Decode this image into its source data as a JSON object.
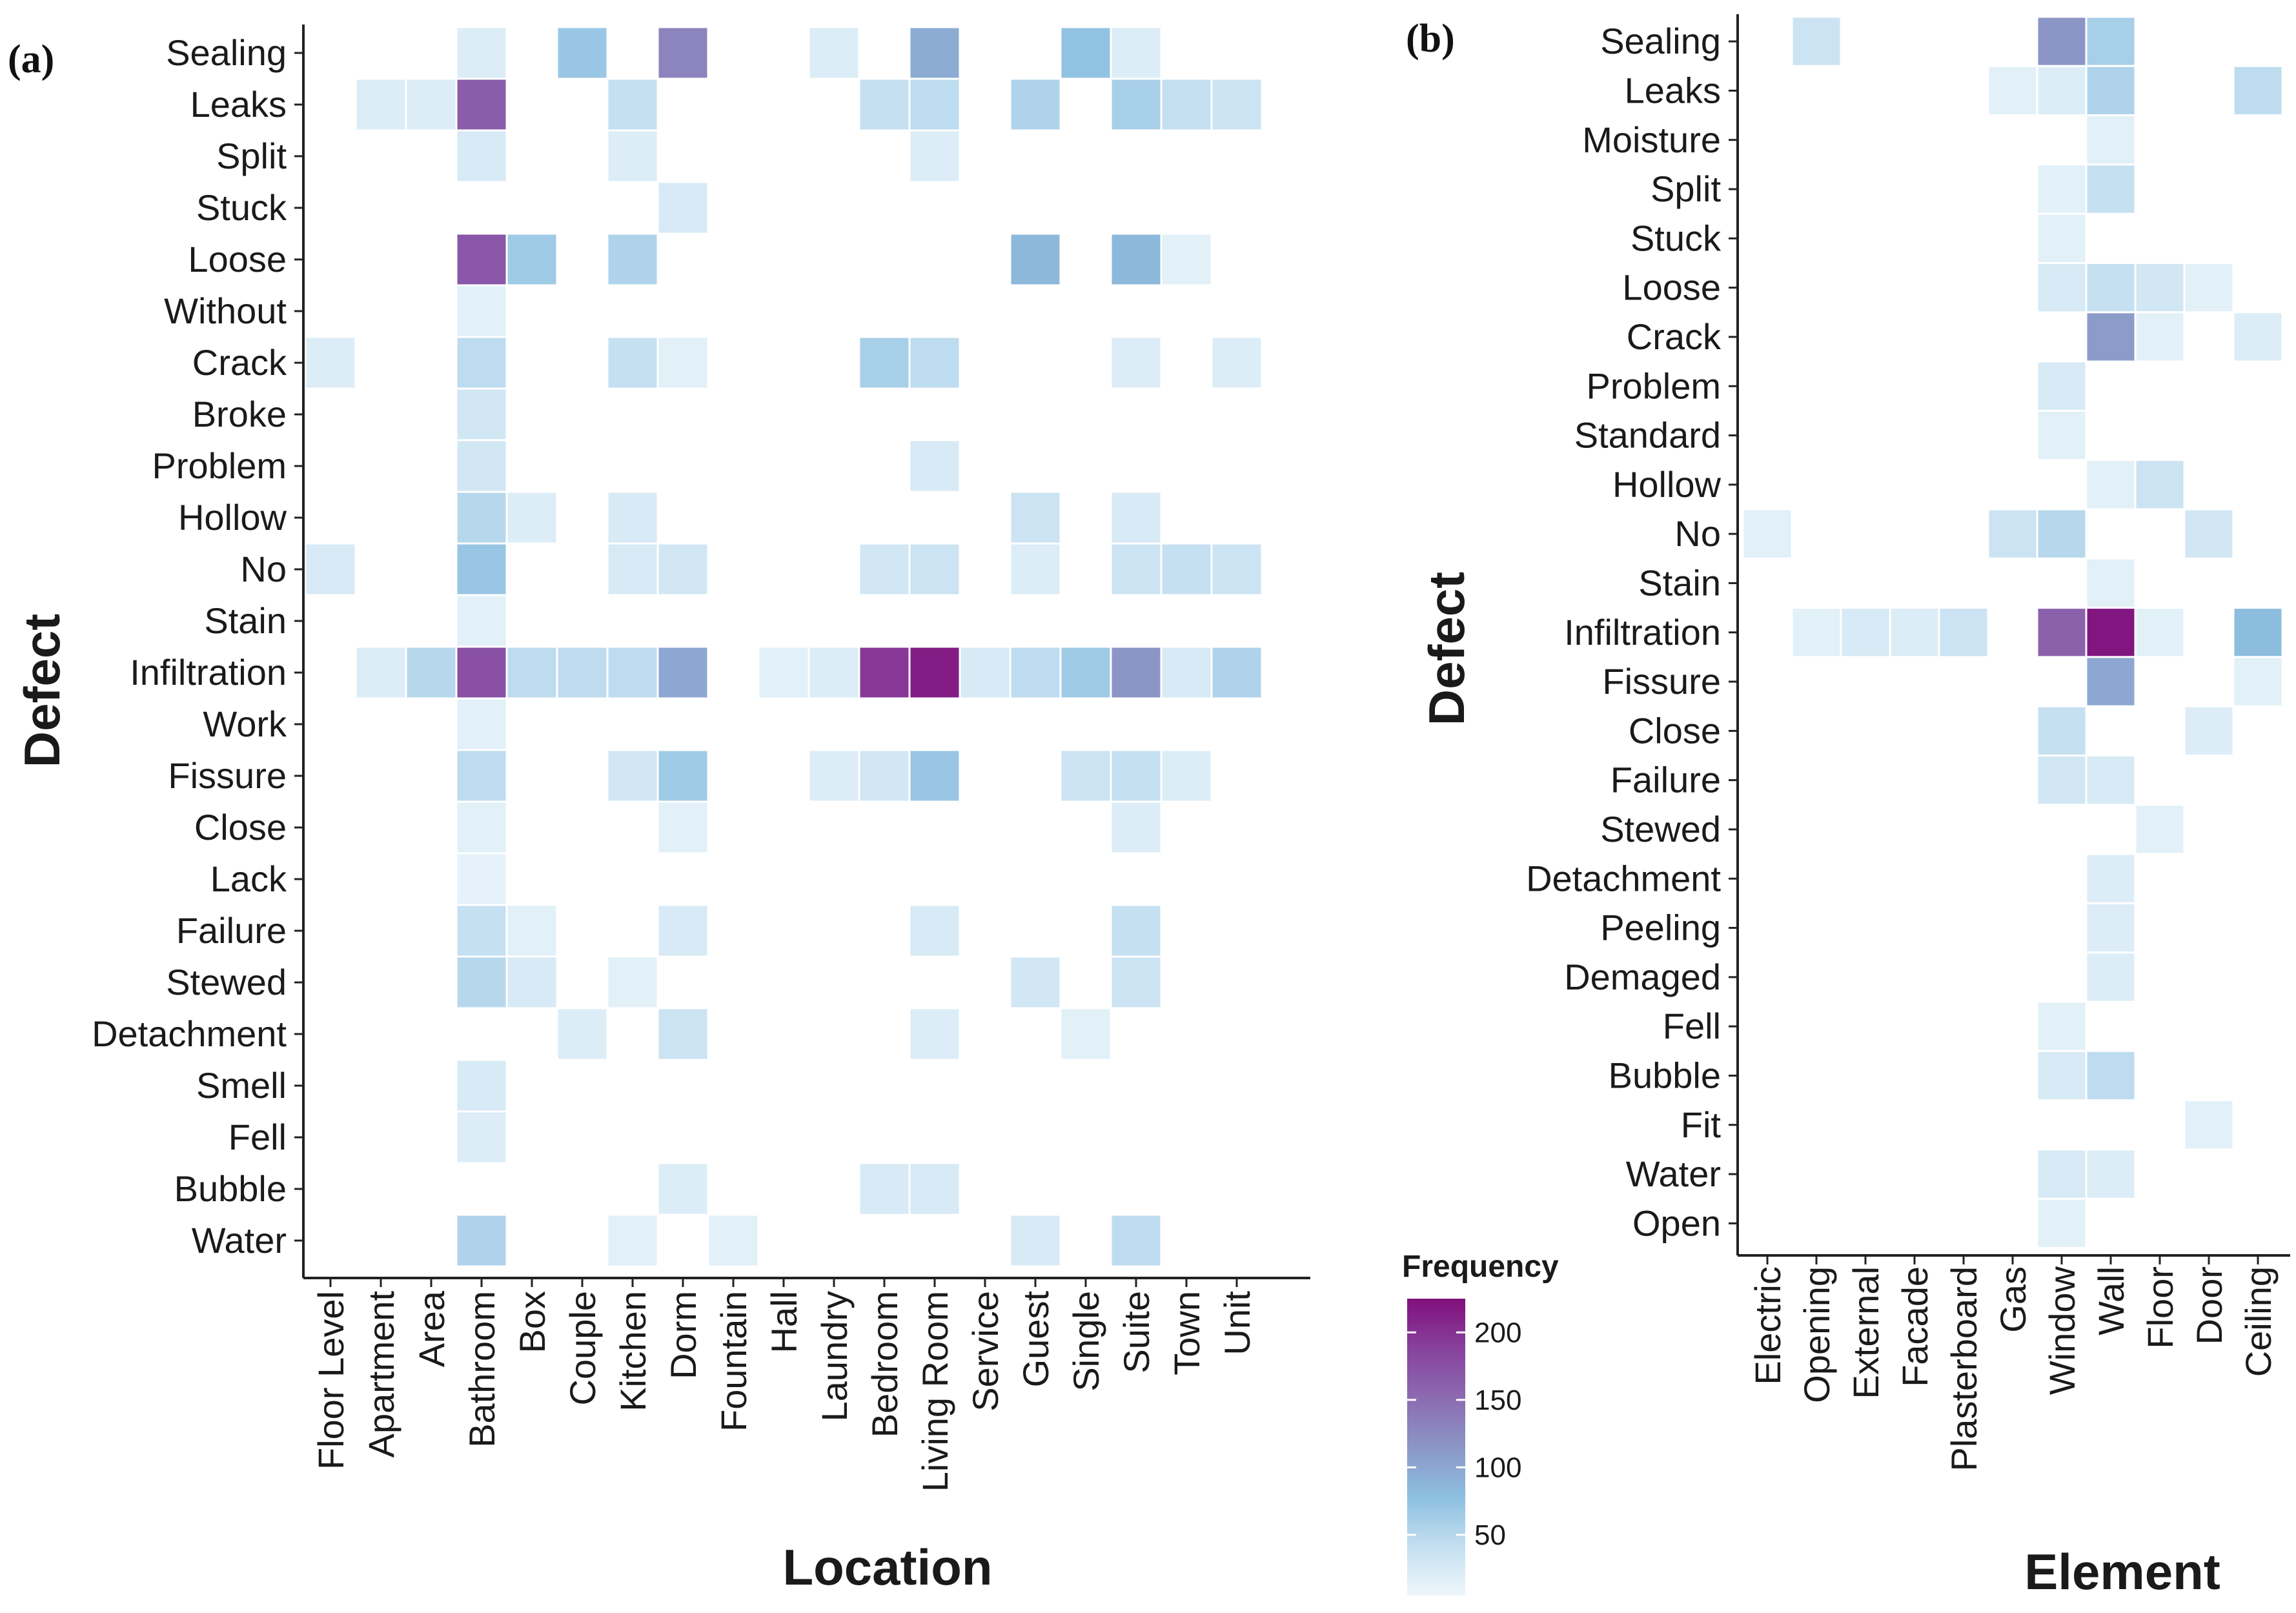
{
  "chart_data": [
    {
      "type": "heatmap",
      "panel_label": "(a)",
      "xlabel": "Location",
      "ylabel": "Defect",
      "x": [
        "Floor Level",
        "Apartment",
        "Area",
        "Bathroom",
        "Box",
        "Couple",
        "Kitchen",
        "Dorm",
        "Fountain",
        "Hall",
        "Laundry",
        "Bedroom",
        "Living Room",
        "Service",
        "Guest",
        "Single",
        "Suite",
        "Town",
        "Unit"
      ],
      "y": [
        "Sealing",
        "Leaks",
        "Split",
        "Stuck",
        "Loose",
        "Without",
        "Crack",
        "Broke",
        "Problem",
        "Hollow",
        "No",
        "Stain",
        "Infiltration",
        "Work",
        "Fissure",
        "Close",
        "Lack",
        "Failure",
        "Stewed",
        "Detachment",
        "Smell",
        "Fell",
        "Bubble",
        "Water"
      ],
      "cells": [
        {
          "y": "Sealing",
          "x": "Bathroom",
          "value": 20
        },
        {
          "y": "Sealing",
          "x": "Couple",
          "value": 70
        },
        {
          "y": "Sealing",
          "x": "Dorm",
          "value": 130
        },
        {
          "y": "Sealing",
          "x": "Laundry",
          "value": 20
        },
        {
          "y": "Sealing",
          "x": "Living Room",
          "value": 95
        },
        {
          "y": "Sealing",
          "x": "Single",
          "value": 75
        },
        {
          "y": "Sealing",
          "x": "Suite",
          "value": 20
        },
        {
          "y": "Leaks",
          "x": "Apartment",
          "value": 20
        },
        {
          "y": "Leaks",
          "x": "Area",
          "value": 20
        },
        {
          "y": "Leaks",
          "x": "Bathroom",
          "value": 165
        },
        {
          "y": "Leaks",
          "x": "Kitchen",
          "value": 40
        },
        {
          "y": "Leaks",
          "x": "Bedroom",
          "value": 40
        },
        {
          "y": "Leaks",
          "x": "Living Room",
          "value": 45
        },
        {
          "y": "Leaks",
          "x": "Guest",
          "value": 55
        },
        {
          "y": "Leaks",
          "x": "Suite",
          "value": 60
        },
        {
          "y": "Leaks",
          "x": "Town",
          "value": 40
        },
        {
          "y": "Leaks",
          "x": "Unit",
          "value": 35
        },
        {
          "y": "Split",
          "x": "Bathroom",
          "value": 25
        },
        {
          "y": "Split",
          "x": "Kitchen",
          "value": 20
        },
        {
          "y": "Split",
          "x": "Living Room",
          "value": 20
        },
        {
          "y": "Stuck",
          "x": "Dorm",
          "value": 25
        },
        {
          "y": "Loose",
          "x": "Bathroom",
          "value": 170
        },
        {
          "y": "Loose",
          "x": "Box",
          "value": 65
        },
        {
          "y": "Loose",
          "x": "Kitchen",
          "value": 55
        },
        {
          "y": "Loose",
          "x": "Guest",
          "value": 85
        },
        {
          "y": "Loose",
          "x": "Suite",
          "value": 85
        },
        {
          "y": "Loose",
          "x": "Town",
          "value": 15
        },
        {
          "y": "Without",
          "x": "Bathroom",
          "value": 15
        },
        {
          "y": "Crack",
          "x": "Floor Level",
          "value": 20
        },
        {
          "y": "Crack",
          "x": "Bathroom",
          "value": 45
        },
        {
          "y": "Crack",
          "x": "Kitchen",
          "value": 40
        },
        {
          "y": "Crack",
          "x": "Dorm",
          "value": 15
        },
        {
          "y": "Crack",
          "x": "Bedroom",
          "value": 60
        },
        {
          "y": "Crack",
          "x": "Living Room",
          "value": 45
        },
        {
          "y": "Crack",
          "x": "Suite",
          "value": 20
        },
        {
          "y": "Crack",
          "x": "Unit",
          "value": 20
        },
        {
          "y": "Broke",
          "x": "Bathroom",
          "value": 30
        },
        {
          "y": "Problem",
          "x": "Bathroom",
          "value": 30
        },
        {
          "y": "Problem",
          "x": "Living Room",
          "value": 25
        },
        {
          "y": "Hollow",
          "x": "Bathroom",
          "value": 50
        },
        {
          "y": "Hollow",
          "x": "Box",
          "value": 20
        },
        {
          "y": "Hollow",
          "x": "Kitchen",
          "value": 25
        },
        {
          "y": "Hollow",
          "x": "Guest",
          "value": 35
        },
        {
          "y": "Hollow",
          "x": "Suite",
          "value": 25
        },
        {
          "y": "No",
          "x": "Floor Level",
          "value": 25
        },
        {
          "y": "No",
          "x": "Bathroom",
          "value": 70
        },
        {
          "y": "No",
          "x": "Kitchen",
          "value": 25
        },
        {
          "y": "No",
          "x": "Dorm",
          "value": 30
        },
        {
          "y": "No",
          "x": "Bedroom",
          "value": 30
        },
        {
          "y": "No",
          "x": "Living Room",
          "value": 35
        },
        {
          "y": "No",
          "x": "Guest",
          "value": 20
        },
        {
          "y": "No",
          "x": "Suite",
          "value": 35
        },
        {
          "y": "No",
          "x": "Town",
          "value": 40
        },
        {
          "y": "No",
          "x": "Unit",
          "value": 35
        },
        {
          "y": "Stain",
          "x": "Bathroom",
          "value": 15
        },
        {
          "y": "Infiltration",
          "x": "Apartment",
          "value": 20
        },
        {
          "y": "Infiltration",
          "x": "Area",
          "value": 50
        },
        {
          "y": "Infiltration",
          "x": "Bathroom",
          "value": 175
        },
        {
          "y": "Infiltration",
          "x": "Box",
          "value": 45
        },
        {
          "y": "Infiltration",
          "x": "Couple",
          "value": 45
        },
        {
          "y": "Infiltration",
          "x": "Kitchen",
          "value": 45
        },
        {
          "y": "Infiltration",
          "x": "Dorm",
          "value": 100
        },
        {
          "y": "Infiltration",
          "x": "Hall",
          "value": 15
        },
        {
          "y": "Infiltration",
          "x": "Laundry",
          "value": 20
        },
        {
          "y": "Infiltration",
          "x": "Bedroom",
          "value": 195
        },
        {
          "y": "Infiltration",
          "x": "Living Room",
          "value": 215
        },
        {
          "y": "Infiltration",
          "x": "Service",
          "value": 25
        },
        {
          "y": "Infiltration",
          "x": "Guest",
          "value": 45
        },
        {
          "y": "Infiltration",
          "x": "Single",
          "value": 65
        },
        {
          "y": "Infiltration",
          "x": "Suite",
          "value": 115
        },
        {
          "y": "Infiltration",
          "x": "Town",
          "value": 25
        },
        {
          "y": "Infiltration",
          "x": "Unit",
          "value": 55
        },
        {
          "y": "Work",
          "x": "Bathroom",
          "value": 15
        },
        {
          "y": "Fissure",
          "x": "Bathroom",
          "value": 45
        },
        {
          "y": "Fissure",
          "x": "Kitchen",
          "value": 30
        },
        {
          "y": "Fissure",
          "x": "Dorm",
          "value": 65
        },
        {
          "y": "Fissure",
          "x": "Laundry",
          "value": 20
        },
        {
          "y": "Fissure",
          "x": "Bedroom",
          "value": 30
        },
        {
          "y": "Fissure",
          "x": "Living Room",
          "value": 70
        },
        {
          "y": "Fissure",
          "x": "Single",
          "value": 35
        },
        {
          "y": "Fissure",
          "x": "Suite",
          "value": 40
        },
        {
          "y": "Fissure",
          "x": "Town",
          "value": 20
        },
        {
          "y": "Close",
          "x": "Bathroom",
          "value": 15
        },
        {
          "y": "Close",
          "x": "Dorm",
          "value": 15
        },
        {
          "y": "Close",
          "x": "Suite",
          "value": 20
        },
        {
          "y": "Lack",
          "x": "Bathroom",
          "value": 12
        },
        {
          "y": "Failure",
          "x": "Bathroom",
          "value": 40
        },
        {
          "y": "Failure",
          "x": "Box",
          "value": 15
        },
        {
          "y": "Failure",
          "x": "Dorm",
          "value": 25
        },
        {
          "y": "Failure",
          "x": "Living Room",
          "value": 25
        },
        {
          "y": "Failure",
          "x": "Suite",
          "value": 40
        },
        {
          "y": "Stewed",
          "x": "Bathroom",
          "value": 50
        },
        {
          "y": "Stewed",
          "x": "Box",
          "value": 25
        },
        {
          "y": "Stewed",
          "x": "Kitchen",
          "value": 15
        },
        {
          "y": "Stewed",
          "x": "Guest",
          "value": 30
        },
        {
          "y": "Stewed",
          "x": "Suite",
          "value": 35
        },
        {
          "y": "Detachment",
          "x": "Couple",
          "value": 20
        },
        {
          "y": "Detachment",
          "x": "Dorm",
          "value": 35
        },
        {
          "y": "Detachment",
          "x": "Living Room",
          "value": 20
        },
        {
          "y": "Detachment",
          "x": "Single",
          "value": 15
        },
        {
          "y": "Smell",
          "x": "Bathroom",
          "value": 25
        },
        {
          "y": "Fell",
          "x": "Bathroom",
          "value": 20
        },
        {
          "y": "Bubble",
          "x": "Dorm",
          "value": 20
        },
        {
          "y": "Bubble",
          "x": "Bedroom",
          "value": 25
        },
        {
          "y": "Bubble",
          "x": "Living Room",
          "value": 25
        },
        {
          "y": "Water",
          "x": "Bathroom",
          "value": 55
        },
        {
          "y": "Water",
          "x": "Kitchen",
          "value": 15
        },
        {
          "y": "Water",
          "x": "Fountain",
          "value": 15
        },
        {
          "y": "Water",
          "x": "Guest",
          "value": 25
        },
        {
          "y": "Water",
          "x": "Suite",
          "value": 45
        }
      ]
    },
    {
      "type": "heatmap",
      "panel_label": "(b)",
      "xlabel": "Element",
      "ylabel": "Defect",
      "x": [
        "Electric",
        "Opening",
        "External",
        "Facade",
        "Plasterboard",
        "Gas",
        "Window",
        "Wall",
        "Floor",
        "Door",
        "Ceiling"
      ],
      "y": [
        "Sealing",
        "Leaks",
        "Moisture",
        "Split",
        "Stuck",
        "Loose",
        "Crack",
        "Problem",
        "Standard",
        "Hollow",
        "No",
        "Stain",
        "Infiltration",
        "Fissure",
        "Close",
        "Failure",
        "Stewed",
        "Detachment",
        "Peeling",
        "Demaged",
        "Fell",
        "Bubble",
        "Fit",
        "Water",
        "Open"
      ],
      "cells": [
        {
          "y": "Sealing",
          "x": "Opening",
          "value": 35
        },
        {
          "y": "Sealing",
          "x": "Window",
          "value": 115
        },
        {
          "y": "Sealing",
          "x": "Wall",
          "value": 60
        },
        {
          "y": "Leaks",
          "x": "Gas",
          "value": 15
        },
        {
          "y": "Leaks",
          "x": "Window",
          "value": 20
        },
        {
          "y": "Leaks",
          "x": "Wall",
          "value": 55
        },
        {
          "y": "Leaks",
          "x": "Ceiling",
          "value": 45
        },
        {
          "y": "Moisture",
          "x": "Wall",
          "value": 15
        },
        {
          "y": "Split",
          "x": "Window",
          "value": 15
        },
        {
          "y": "Split",
          "x": "Wall",
          "value": 40
        },
        {
          "y": "Stuck",
          "x": "Window",
          "value": 15
        },
        {
          "y": "Loose",
          "x": "Window",
          "value": 25
        },
        {
          "y": "Loose",
          "x": "Wall",
          "value": 40
        },
        {
          "y": "Loose",
          "x": "Floor",
          "value": 30
        },
        {
          "y": "Loose",
          "x": "Door",
          "value": 15
        },
        {
          "y": "Crack",
          "x": "Wall",
          "value": 110
        },
        {
          "y": "Crack",
          "x": "Floor",
          "value": 15
        },
        {
          "y": "Crack",
          "x": "Ceiling",
          "value": 20
        },
        {
          "y": "Problem",
          "x": "Window",
          "value": 25
        },
        {
          "y": "Standard",
          "x": "Window",
          "value": 15
        },
        {
          "y": "Hollow",
          "x": "Wall",
          "value": 15
        },
        {
          "y": "Hollow",
          "x": "Floor",
          "value": 35
        },
        {
          "y": "No",
          "x": "Electric",
          "value": 15
        },
        {
          "y": "No",
          "x": "Gas",
          "value": 35
        },
        {
          "y": "No",
          "x": "Window",
          "value": 50
        },
        {
          "y": "No",
          "x": "Door",
          "value": 30
        },
        {
          "y": "Stain",
          "x": "Wall",
          "value": 15
        },
        {
          "y": "Infiltration",
          "x": "Opening",
          "value": 15
        },
        {
          "y": "Infiltration",
          "x": "External",
          "value": 25
        },
        {
          "y": "Infiltration",
          "x": "Facade",
          "value": 20
        },
        {
          "y": "Infiltration",
          "x": "Plasterboard",
          "value": 35
        },
        {
          "y": "Infiltration",
          "x": "Window",
          "value": 160
        },
        {
          "y": "Infiltration",
          "x": "Wall",
          "value": 220
        },
        {
          "y": "Infiltration",
          "x": "Floor",
          "value": 15
        },
        {
          "y": "Infiltration",
          "x": "Ceiling",
          "value": 80
        },
        {
          "y": "Fissure",
          "x": "Wall",
          "value": 100
        },
        {
          "y": "Fissure",
          "x": "Ceiling",
          "value": 15
        },
        {
          "y": "Close",
          "x": "Window",
          "value": 40
        },
        {
          "y": "Close",
          "x": "Door",
          "value": 20
        },
        {
          "y": "Failure",
          "x": "Window",
          "value": 30
        },
        {
          "y": "Failure",
          "x": "Wall",
          "value": 25
        },
        {
          "y": "Stewed",
          "x": "Floor",
          "value": 15
        },
        {
          "y": "Detachment",
          "x": "Wall",
          "value": 20
        },
        {
          "y": "Peeling",
          "x": "Wall",
          "value": 20
        },
        {
          "y": "Demaged",
          "x": "Wall",
          "value": 20
        },
        {
          "y": "Fell",
          "x": "Window",
          "value": 15
        },
        {
          "y": "Bubble",
          "x": "Window",
          "value": 25
        },
        {
          "y": "Bubble",
          "x": "Wall",
          "value": 45
        },
        {
          "y": "Fit",
          "x": "Door",
          "value": 15
        },
        {
          "y": "Water",
          "x": "Window",
          "value": 25
        },
        {
          "y": "Water",
          "x": "Wall",
          "value": 20
        },
        {
          "y": "Open",
          "x": "Window",
          "value": 15
        }
      ]
    }
  ],
  "legend": {
    "title": "Frequency",
    "ticks": [
      50,
      100,
      150,
      200
    ],
    "range": [
      5,
      225
    ],
    "colors": [
      "#eef7fb",
      "#c3dff0",
      "#8cbfe0",
      "#8c96c6",
      "#8c6bb1",
      "#88419d",
      "#810f7c"
    ]
  }
}
